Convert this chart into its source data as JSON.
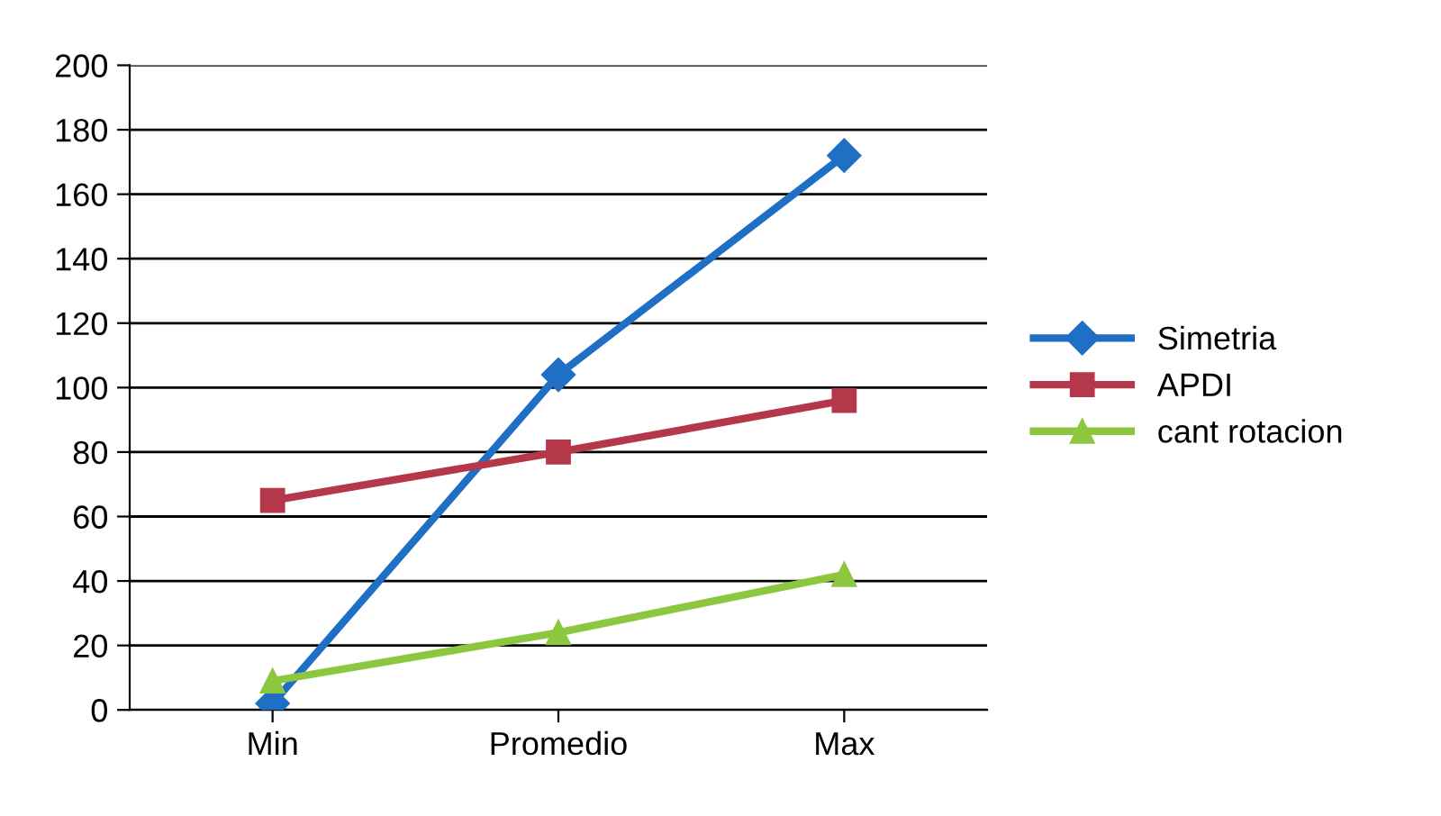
{
  "chart_data": {
    "type": "line",
    "categories": [
      "Min",
      "Promedio",
      "Max"
    ],
    "series": [
      {
        "name": "Simetria",
        "color": "#1f6fc5",
        "marker": "diamond",
        "values": [
          2,
          104,
          172
        ]
      },
      {
        "name": "APDI",
        "color": "#b5374a",
        "marker": "square",
        "values": [
          65,
          80,
          96
        ]
      },
      {
        "name": "cant rotacion",
        "color": "#8dc63f",
        "marker": "triangle",
        "values": [
          9,
          24,
          42
        ]
      }
    ],
    "ylim": [
      0,
      200
    ],
    "yticks": [
      0,
      20,
      40,
      60,
      80,
      100,
      120,
      140,
      160,
      180,
      200
    ],
    "grid": "y",
    "legend": "right",
    "line_style": "solid"
  }
}
